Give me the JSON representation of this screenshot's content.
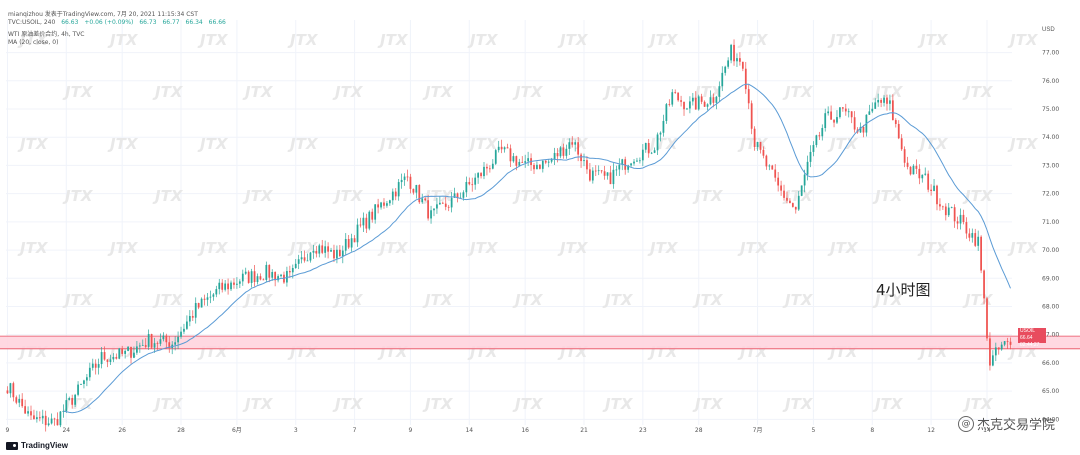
{
  "header": {
    "line1": "mianqizhou 发表于TradingView.com, 7月 20, 2021 11:15:34 CST",
    "line2_symbol": "TVC:USOIL, 240",
    "ohlc": {
      "o": "66.63",
      "change": "+0.06 (+0.09%)",
      "o2": "66.73",
      "h": "66.77",
      "l": "66.34",
      "c": "66.66"
    },
    "line3": "WTI 原油差价合约, 4h, TVC",
    "line4": "MA (20, close, 0)"
  },
  "annotation": "4小时图",
  "watermark_text": "杰克交易学院",
  "watermark_logo": "JTX",
  "logo_text": "TradingView",
  "currency": "USD",
  "price_tag": {
    "label": "USOIL",
    "price": "66.64",
    "time": "02:44:27"
  },
  "colors": {
    "up": "#26a69a",
    "down": "#ef5350",
    "ma": "#5b9bd5",
    "zone_fill": "#ffd1dc",
    "zone_border": "#e84c5e",
    "grid": "#f0f3fa"
  },
  "chart_data": {
    "type": "candlestick",
    "ylim": [
      63.8,
      77.8
    ],
    "y_ticks": [
      "77.00",
      "76.00",
      "75.00",
      "74.00",
      "73.00",
      "72.00",
      "71.00",
      "70.00",
      "69.00",
      "68.00",
      "67.00",
      "66.00",
      "65.00",
      "64.00"
    ],
    "x_ticks": [
      "9",
      "24",
      "26",
      "28",
      "6月",
      "3",
      "7",
      "9",
      "14",
      "16",
      "21",
      "23",
      "28",
      "7月",
      "5",
      "8",
      "12",
      "14"
    ],
    "indicator": "MA(20, close)",
    "support_zone": {
      "low": 66.5,
      "high": 66.95
    },
    "anchors": [
      [
        0,
        65.2
      ],
      [
        8,
        64.0
      ],
      [
        16,
        63.9
      ],
      [
        24,
        65.0
      ],
      [
        32,
        66.2
      ],
      [
        40,
        66.3
      ],
      [
        48,
        66.8
      ],
      [
        56,
        66.7
      ],
      [
        64,
        67.9
      ],
      [
        72,
        68.6
      ],
      [
        80,
        69.0
      ],
      [
        88,
        69.2
      ],
      [
        96,
        69.0
      ],
      [
        104,
        70.2
      ],
      [
        112,
        69.8
      ],
      [
        120,
        70.8
      ],
      [
        128,
        71.7
      ],
      [
        136,
        72.6
      ],
      [
        144,
        71.2
      ],
      [
        152,
        71.8
      ],
      [
        160,
        72.6
      ],
      [
        168,
        73.5
      ],
      [
        176,
        73.0
      ],
      [
        184,
        73.1
      ],
      [
        192,
        73.9
      ],
      [
        198,
        72.7
      ],
      [
        204,
        72.5
      ],
      [
        212,
        73.3
      ],
      [
        220,
        73.7
      ],
      [
        226,
        75.5
      ],
      [
        232,
        75.1
      ],
      [
        240,
        75.4
      ],
      [
        246,
        77.0
      ],
      [
        250,
        76.7
      ],
      [
        254,
        73.8
      ],
      [
        262,
        72.2
      ],
      [
        268,
        71.4
      ],
      [
        272,
        73.0
      ],
      [
        278,
        74.6
      ],
      [
        284,
        74.9
      ],
      [
        290,
        74.2
      ],
      [
        296,
        75.3
      ],
      [
        300,
        75.1
      ],
      [
        306,
        72.9
      ],
      [
        312,
        72.5
      ],
      [
        318,
        71.6
      ],
      [
        324,
        71.0
      ],
      [
        330,
        70.3
      ],
      [
        334,
        66.0
      ],
      [
        338,
        66.6
      ],
      [
        341,
        66.66
      ]
    ],
    "n_candles": 342,
    "last_price": 66.64
  }
}
